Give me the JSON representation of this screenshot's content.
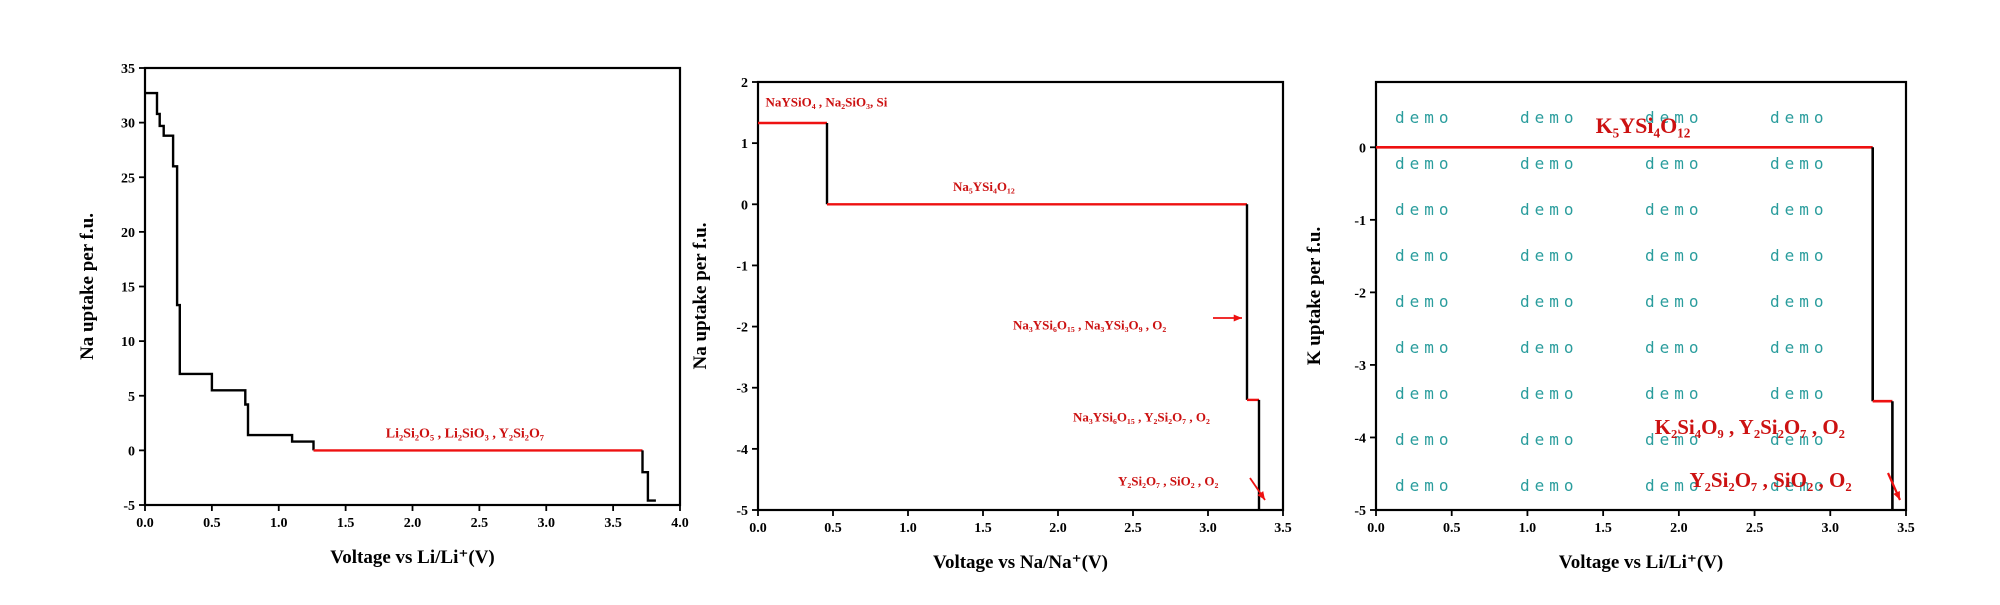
{
  "chart_data": [
    {
      "type": "line",
      "xlabel": "Voltage vs Li/Li⁺(V)",
      "ylabel": "Na uptake per f.u.",
      "xlim": [
        0,
        4.0
      ],
      "ylim": [
        -5,
        35
      ],
      "xticks": [
        "0.0",
        "0.5",
        "1.0",
        "1.5",
        "2.0",
        "2.5",
        "3.0",
        "3.5",
        "4.0"
      ],
      "yticks": [
        "-5",
        "0",
        "5",
        "10",
        "15",
        "20",
        "25",
        "30",
        "35"
      ],
      "series": [
        {
          "color": "#000000",
          "x": [
            0.0,
            0.09,
            0.09,
            0.11,
            0.11,
            0.14,
            0.14,
            0.21,
            0.21,
            0.24,
            0.24,
            0.26,
            0.26,
            0.5,
            0.5,
            0.75,
            0.75,
            0.77,
            0.77,
            1.1,
            1.1,
            1.26,
            1.26
          ],
          "y": [
            32.7,
            32.7,
            30.8,
            30.8,
            29.7,
            29.7,
            28.8,
            28.8,
            26,
            26,
            13.3,
            13.3,
            7,
            7,
            5.5,
            5.5,
            4.2,
            4.2,
            1.4,
            1.4,
            0.8,
            0.8,
            0
          ]
        },
        {
          "color": "#ee1111",
          "x": [
            1.26,
            3.72
          ],
          "y": [
            0,
            0
          ]
        },
        {
          "color": "#000000",
          "x": [
            3.72,
            3.72,
            3.76,
            3.76,
            3.82
          ],
          "y": [
            0,
            -2,
            -2,
            -4.6,
            -4.6
          ]
        }
      ],
      "annotations": [
        {
          "text": "Li₂Si₂O₅ , Li₂SiO₃ , Y₂Si₂O₇",
          "x": 1.8,
          "y": 1.2
        }
      ]
    },
    {
      "type": "line",
      "xlabel": "Voltage vs Na/Na⁺(V)",
      "ylabel": "Na uptake per f.u.",
      "xlim": [
        0,
        3.5
      ],
      "ylim": [
        -5,
        2
      ],
      "xticks": [
        "0.0",
        "0.5",
        "1.0",
        "1.5",
        "2.0",
        "2.5",
        "3.0",
        "3.5"
      ],
      "yticks": [
        "-5",
        "-4",
        "-3",
        "-2",
        "-1",
        "0",
        "1",
        "2"
      ],
      "series": [
        {
          "color": "#ee1111",
          "x": [
            0.0,
            0.46
          ],
          "y": [
            1.33,
            1.33
          ]
        },
        {
          "color": "#000000",
          "x": [
            0.46,
            0.46
          ],
          "y": [
            1.33,
            0
          ]
        },
        {
          "color": "#ee1111",
          "x": [
            0.46,
            3.26
          ],
          "y": [
            0,
            0
          ]
        },
        {
          "color": "#000000",
          "x": [
            3.26,
            3.26
          ],
          "y": [
            0,
            -3.2
          ]
        },
        {
          "color": "#ee1111",
          "x": [
            3.26,
            3.34
          ],
          "y": [
            -3.2,
            -3.2
          ]
        },
        {
          "color": "#000000",
          "x": [
            3.34,
            3.34
          ],
          "y": [
            -3.2,
            -5
          ]
        }
      ],
      "annotations": [
        {
          "text": "NaYSiO₄ , Na₂SiO₃, Si",
          "x": 0.05,
          "y": 1.6
        },
        {
          "text": "Na₅YSi₄O₁₂",
          "x": 1.3,
          "y": 0.22
        },
        {
          "text": "Na₃YSi₆O₁₅ , Na₃YSi₃O₉ , O₂",
          "x": 1.7,
          "y": -2.05
        },
        {
          "text": "Na₃YSi₆O₁₅ , Y₂Si₂O₇ , O₂",
          "x": 2.1,
          "y": -3.55
        },
        {
          "text": "Y₂Si₂O₇ , SiO₂ , O₂",
          "x": 2.4,
          "y": -4.6
        }
      ]
    },
    {
      "type": "line",
      "xlabel": "Voltage vs Li/Li⁺(V)",
      "ylabel": "K uptake per f.u.",
      "xlim": [
        0,
        3.5
      ],
      "ylim": [
        -5,
        0.9
      ],
      "xticks": [
        "0.0",
        "0.5",
        "1.0",
        "1.5",
        "2.0",
        "2.5",
        "3.0",
        "3.5"
      ],
      "yticks": [
        "-5",
        "-4",
        "-3",
        "-2",
        "-1",
        "0"
      ],
      "series": [
        {
          "color": "#ee1111",
          "x": [
            0.0,
            3.28
          ],
          "y": [
            0,
            0
          ]
        },
        {
          "color": "#000000",
          "x": [
            3.28,
            3.28
          ],
          "y": [
            0,
            -3.5
          ]
        },
        {
          "color": "#ee1111",
          "x": [
            3.28,
            3.41
          ],
          "y": [
            -3.5,
            -3.5
          ]
        },
        {
          "color": "#000000",
          "x": [
            3.41,
            3.41
          ],
          "y": [
            -3.5,
            -5
          ]
        }
      ],
      "annotations": [
        {
          "text": "K₅YSi₄O₁₂",
          "x": 1.45,
          "y": 0.2
        },
        {
          "text": "K₂Si₄O₉ , Y₂Si₂O₇ , O₂",
          "x": 1.84,
          "y": -3.95
        },
        {
          "text": "Y₂Si₂O₇ , SiO₂ , O₂",
          "x": 2.07,
          "y": -4.68
        }
      ],
      "watermark": "demo"
    }
  ]
}
